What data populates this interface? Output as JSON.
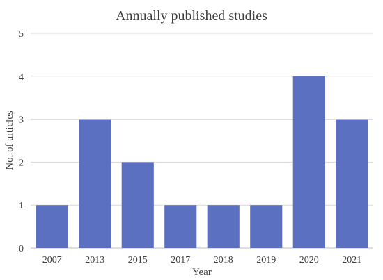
{
  "chart_data": {
    "type": "bar",
    "title": "Annually published studies",
    "xlabel": "Year",
    "ylabel": "No. of articles",
    "categories": [
      "2007",
      "2013",
      "2015",
      "2017",
      "2018",
      "2019",
      "2020",
      "2021"
    ],
    "values": [
      1,
      3,
      2,
      1,
      1,
      1,
      4,
      3
    ],
    "ylim": [
      0,
      5
    ],
    "yticks": [
      0,
      1,
      2,
      3,
      4,
      5
    ],
    "grid": true,
    "bar_color": "#5b70c0",
    "legend": "none"
  }
}
